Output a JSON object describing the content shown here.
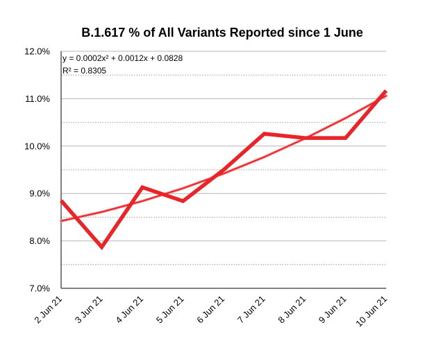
{
  "chart_data": {
    "type": "line",
    "title": "B.1.617 % of All Variants Reported since 1 June",
    "xlabel": "",
    "ylabel": "",
    "categories": [
      "2 Jun 21",
      "3 Jun 21",
      "4 Jun 21",
      "5 Jun 21",
      "6 Jun 21",
      "7 Jun 21",
      "8 Jun 21",
      "9 Jun 21",
      "10 Jun 21"
    ],
    "series": [
      {
        "name": "B.1.617 %",
        "values": [
          8.85,
          7.87,
          9.13,
          8.84,
          9.5,
          10.26,
          10.17,
          10.17,
          11.17
        ],
        "color": "#e8262a"
      }
    ],
    "trendline": {
      "type": "polynomial",
      "equation": "y = 0.0002x² + 0.0012x + 0.0828",
      "r_squared": "R² = 0.8305",
      "values": [
        8.42,
        8.61,
        8.84,
        9.11,
        9.42,
        9.77,
        10.16,
        10.59,
        11.06
      ],
      "color": "#e8262a"
    },
    "y_ticks": [
      "7.0%",
      "8.0%",
      "9.0%",
      "10.0%",
      "11.0%",
      "12.0%"
    ],
    "y_tick_values": [
      7,
      8,
      9,
      10,
      11,
      12
    ],
    "ylim": [
      7,
      12
    ],
    "minor_gridlines": [
      7.5,
      8.5,
      9.5,
      10.5,
      11.5
    ]
  }
}
